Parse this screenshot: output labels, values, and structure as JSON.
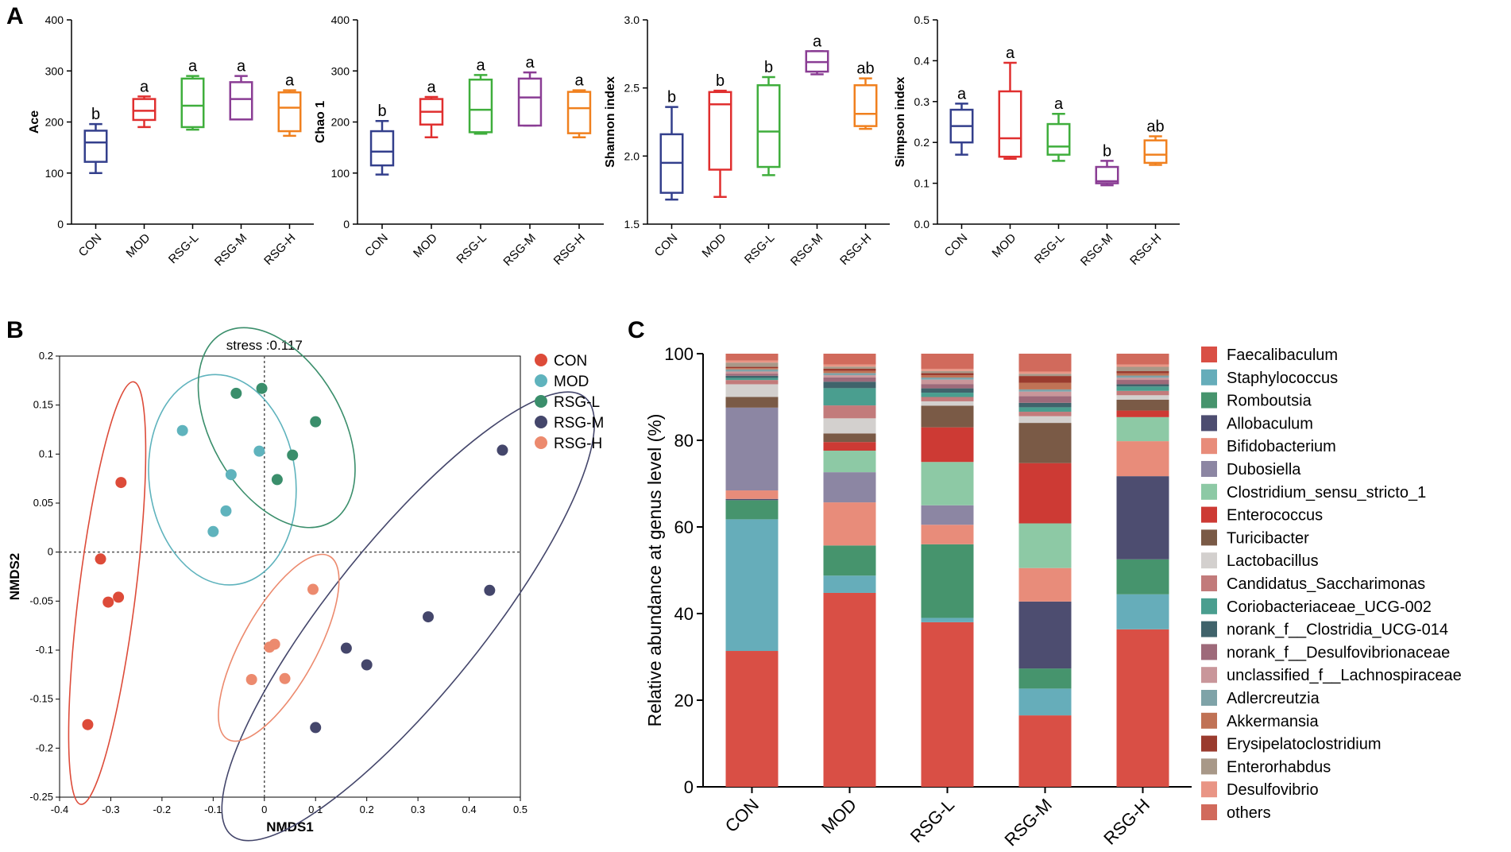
{
  "panel_labels": [
    "A",
    "B",
    "C"
  ],
  "group_colors": {
    "CON": "#333f8c",
    "MOD": "#e02f2f",
    "RSG-L": "#3fae3c",
    "RSG-M": "#8a3d94",
    "RSG-H": "#f0801e"
  },
  "chart_data": [
    {
      "type": "box",
      "panel": "A",
      "ylabel": "Ace",
      "ylim": [
        0,
        400
      ],
      "yticks": [
        "0",
        "100",
        "200",
        "300",
        "400"
      ],
      "categories": [
        "CON",
        "MOD",
        "RSG-L",
        "RSG-M",
        "RSG-H"
      ],
      "boxes": [
        {
          "min": 100,
          "q1": 122,
          "median": 160,
          "q3": 183,
          "max": 196
        },
        {
          "min": 190,
          "q1": 204,
          "median": 222,
          "q3": 245,
          "max": 250
        },
        {
          "min": 185,
          "q1": 190,
          "median": 232,
          "q3": 285,
          "max": 290
        },
        {
          "min": 205,
          "q1": 205,
          "median": 245,
          "q3": 278,
          "max": 290
        },
        {
          "min": 173,
          "q1": 182,
          "median": 228,
          "q3": 258,
          "max": 262
        }
      ],
      "letters": [
        "b",
        "a",
        "a",
        "a",
        "a"
      ]
    },
    {
      "type": "box",
      "panel": "A",
      "ylabel": "Chao 1",
      "ylim": [
        0,
        400
      ],
      "yticks": [
        "0",
        "100",
        "200",
        "300",
        "400"
      ],
      "categories": [
        "CON",
        "MOD",
        "RSG-L",
        "RSG-M",
        "RSG-H"
      ],
      "boxes": [
        {
          "min": 97,
          "q1": 115,
          "median": 142,
          "q3": 182,
          "max": 202
        },
        {
          "min": 170,
          "q1": 195,
          "median": 220,
          "q3": 245,
          "max": 249
        },
        {
          "min": 177,
          "q1": 180,
          "median": 224,
          "q3": 283,
          "max": 292
        },
        {
          "min": 193,
          "q1": 193,
          "median": 248,
          "q3": 285,
          "max": 297
        },
        {
          "min": 170,
          "q1": 178,
          "median": 227,
          "q3": 259,
          "max": 262
        }
      ],
      "letters": [
        "b",
        "a",
        "a",
        "a",
        "a"
      ]
    },
    {
      "type": "box",
      "panel": "A",
      "ylabel": "Shannon index",
      "ylim": [
        1.5,
        3.0
      ],
      "yticks": [
        "1.5",
        "2.0",
        "2.5",
        "3.0"
      ],
      "categories": [
        "CON",
        "MOD",
        "RSG-L",
        "RSG-M",
        "RSG-H"
      ],
      "boxes": [
        {
          "min": 1.68,
          "q1": 1.73,
          "median": 1.95,
          "q3": 2.16,
          "max": 2.36
        },
        {
          "min": 1.7,
          "q1": 1.9,
          "median": 2.38,
          "q3": 2.47,
          "max": 2.48
        },
        {
          "min": 1.86,
          "q1": 1.92,
          "median": 2.18,
          "q3": 2.52,
          "max": 2.58
        },
        {
          "min": 2.6,
          "q1": 2.62,
          "median": 2.69,
          "q3": 2.77,
          "max": 2.77
        },
        {
          "min": 2.2,
          "q1": 2.22,
          "median": 2.31,
          "q3": 2.52,
          "max": 2.57
        }
      ],
      "letters": [
        "b",
        "b",
        "b",
        "a",
        "ab"
      ]
    },
    {
      "type": "box",
      "panel": "A",
      "ylabel": "Simpson index",
      "ylim": [
        0,
        0.5
      ],
      "yticks": [
        "0.0",
        "0.1",
        "0.2",
        "0.3",
        "0.4",
        "0.5"
      ],
      "categories": [
        "CON",
        "MOD",
        "RSG-L",
        "RSG-M",
        "RSG-H"
      ],
      "boxes": [
        {
          "min": 0.17,
          "q1": 0.2,
          "median": 0.24,
          "q3": 0.28,
          "max": 0.295
        },
        {
          "min": 0.16,
          "q1": 0.165,
          "median": 0.21,
          "q3": 0.325,
          "max": 0.395
        },
        {
          "min": 0.155,
          "q1": 0.17,
          "median": 0.19,
          "q3": 0.245,
          "max": 0.27
        },
        {
          "min": 0.095,
          "q1": 0.1,
          "median": 0.105,
          "q3": 0.14,
          "max": 0.155
        },
        {
          "min": 0.145,
          "q1": 0.15,
          "median": 0.17,
          "q3": 0.205,
          "max": 0.215
        }
      ],
      "letters": [
        "a",
        "a",
        "a",
        "b",
        "ab"
      ]
    },
    {
      "type": "scatter",
      "panel": "B",
      "title": "stress :0.117",
      "xlabel": "NMDS1",
      "ylabel": "NMDS2",
      "xlim": [
        -0.4,
        0.5
      ],
      "ylim": [
        -0.25,
        0.2
      ],
      "xticks": [
        "-0.4",
        "-0.3",
        "-0.2",
        "-0.1",
        "0",
        "0.1",
        "0.2",
        "0.3",
        "0.4",
        "0.5"
      ],
      "yticks": [
        "-0.25",
        "-0.2",
        "-0.15",
        "-0.1",
        "-0.05",
        "0",
        "0.05",
        "0.1",
        "0.15",
        "0.2"
      ],
      "legend": [
        "CON",
        "MOD",
        "RSG-L",
        "RSG-M",
        "RSG-H"
      ],
      "series": [
        {
          "name": "CON",
          "color": "#dd4b39",
          "points": [
            [
              -0.28,
              0.071
            ],
            [
              -0.32,
              -0.007
            ],
            [
              -0.285,
              -0.046
            ],
            [
              -0.305,
              -0.051
            ],
            [
              -0.345,
              -0.176
            ]
          ]
        },
        {
          "name": "MOD",
          "color": "#5fb3bd",
          "points": [
            [
              -0.16,
              0.124
            ],
            [
              -0.065,
              0.079
            ],
            [
              -0.075,
              0.042
            ],
            [
              -0.1,
              0.021
            ],
            [
              -0.01,
              0.103
            ]
          ]
        },
        {
          "name": "RSG-L",
          "color": "#3a8e6b",
          "points": [
            [
              -0.055,
              0.162
            ],
            [
              -0.005,
              0.167
            ],
            [
              0.1,
              0.133
            ],
            [
              0.055,
              0.099
            ],
            [
              0.025,
              0.074
            ]
          ]
        },
        {
          "name": "RSG-M",
          "color": "#44466b",
          "points": [
            [
              0.465,
              0.104
            ],
            [
              0.44,
              -0.039
            ],
            [
              0.32,
              -0.066
            ],
            [
              0.16,
              -0.098
            ],
            [
              0.2,
              -0.115
            ],
            [
              0.1,
              -0.179
            ]
          ]
        },
        {
          "name": "RSG-H",
          "color": "#ec8a6e",
          "points": [
            [
              0.095,
              -0.038
            ],
            [
              0.02,
              -0.094
            ],
            [
              0.01,
              -0.097
            ],
            [
              0.04,
              -0.129
            ],
            [
              -0.025,
              -0.13
            ]
          ]
        }
      ]
    },
    {
      "type": "stacked-bar",
      "panel": "C",
      "ylabel": "Relative abundance at genus level (%)",
      "ylim": [
        0,
        100
      ],
      "yticks": [
        "0",
        "20",
        "40",
        "60",
        "80",
        "100"
      ],
      "categories": [
        "CON",
        "MOD",
        "RSG-L",
        "RSG-M",
        "RSG-H"
      ],
      "series": [
        {
          "name": "Faecalibaculum",
          "color": "#d94f45",
          "values": [
            32,
            45,
            38,
            16,
            36
          ]
        },
        {
          "name": "Staphylococcus",
          "color": "#66adba",
          "values": [
            31,
            4,
            1,
            6,
            8
          ]
        },
        {
          "name": "Romboutsia",
          "color": "#46946d",
          "values": [
            4.5,
            7,
            17,
            4.5,
            8
          ]
        },
        {
          "name": "Allobaculum",
          "color": "#4d4d70",
          "values": [
            0.3,
            0,
            0,
            15,
            19
          ]
        },
        {
          "name": "Bifidobacterium",
          "color": "#e88c7a",
          "values": [
            2,
            10,
            4.5,
            7.5,
            8
          ]
        },
        {
          "name": "Dubosiella",
          "color": "#8c86a3",
          "values": [
            19.5,
            7,
            4.5,
            0,
            0
          ]
        },
        {
          "name": "Clostridium_sensu_stricto_1",
          "color": "#8dc9a5",
          "values": [
            0,
            5,
            10,
            10,
            5.5
          ]
        },
        {
          "name": "Enterococcus",
          "color": "#cd3a34",
          "values": [
            0,
            2,
            8,
            13.5,
            1.5
          ]
        },
        {
          "name": "Turicibacter",
          "color": "#7a5a46",
          "values": [
            2.5,
            2,
            5,
            9,
            2.5
          ]
        },
        {
          "name": "Lactobacillus",
          "color": "#d3d0ce",
          "values": [
            3,
            3.5,
            1,
            1.5,
            1
          ]
        },
        {
          "name": "Candidatus_Saccharimonas",
          "color": "#c27b7b",
          "values": [
            1,
            3,
            1,
            1,
            1
          ]
        },
        {
          "name": "Coriobacteriaceae_UCG-002",
          "color": "#4a9e8f",
          "values": [
            0.5,
            4,
            1,
            1,
            1
          ]
        },
        {
          "name": "norank_f__Clostridia_UCG-014",
          "color": "#40636b",
          "values": [
            0.5,
            1.5,
            1,
            1,
            0.5
          ]
        },
        {
          "name": "norank_f__Desulfovibrionaceae",
          "color": "#9e6a7a",
          "values": [
            0.5,
            1,
            1,
            1.5,
            1
          ]
        },
        {
          "name": "unclassified_f__Lachnospiraceae",
          "color": "#c9969a",
          "values": [
            0.5,
            0.5,
            1,
            1,
            0.5
          ]
        },
        {
          "name": "Adlercreutzia",
          "color": "#7fa3a8",
          "values": [
            0.5,
            0.5,
            0.5,
            0.5,
            0.5
          ]
        },
        {
          "name": "Akkermansia",
          "color": "#c07255",
          "values": [
            0.3,
            0.5,
            0.5,
            1.5,
            0.5
          ]
        },
        {
          "name": "Erysipelatoclostridium",
          "color": "#9a3b2e",
          "values": [
            0.3,
            0.5,
            0.5,
            1.5,
            0.5
          ]
        },
        {
          "name": "Enterorhabdus",
          "color": "#a89888",
          "values": [
            1,
            0.5,
            0.5,
            0.5,
            1
          ]
        },
        {
          "name": "Desulfovibrio",
          "color": "#e99585",
          "values": [
            0.5,
            0.5,
            0.5,
            0.5,
            0.5
          ]
        },
        {
          "name": "others",
          "color": "#d16a5c",
          "values": [
            1.6,
            2.5,
            3.5,
            4,
            2.5
          ]
        }
      ]
    }
  ]
}
